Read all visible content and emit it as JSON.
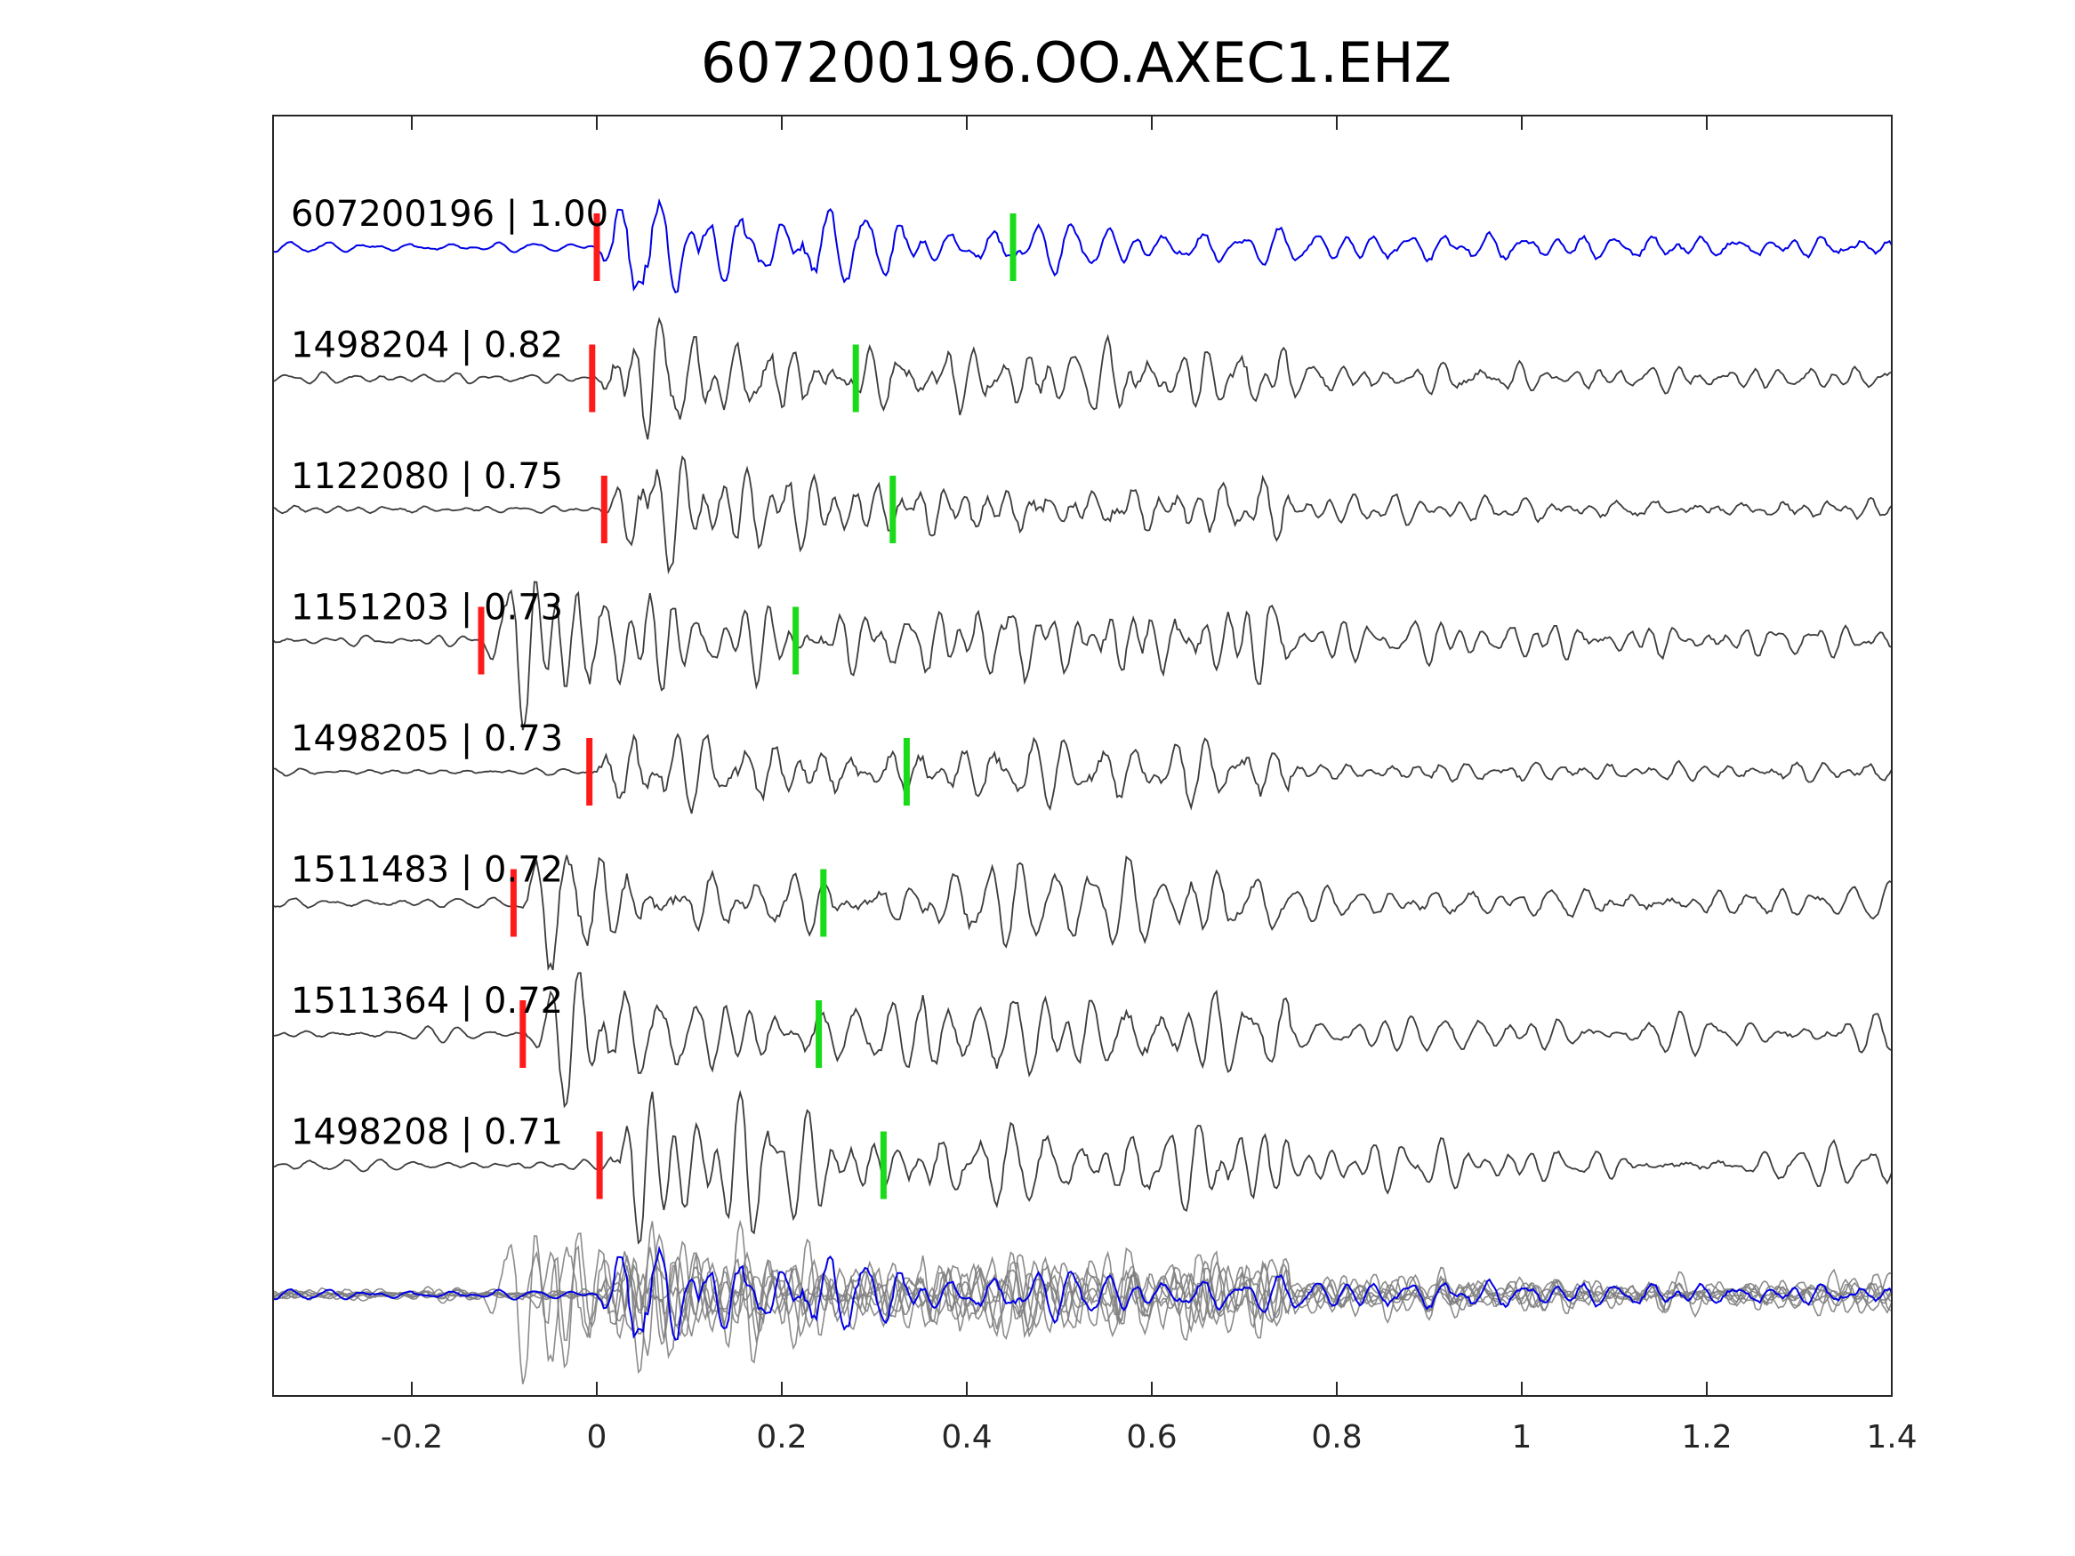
{
  "chart_data": {
    "type": "line",
    "title": "607200196.OO.AXEC1.EHZ",
    "xlabel": "",
    "ylabel": "",
    "xlim": [
      -0.35,
      1.4
    ],
    "xticks": [
      -0.2,
      0,
      0.2,
      0.4,
      0.6,
      0.8,
      1.0,
      1.2,
      1.4
    ],
    "xtick_labels": [
      "-0.2",
      "0",
      "0.2",
      "0.4",
      "0.6",
      "0.8",
      "1",
      "1.2",
      "1.4"
    ],
    "grid": false,
    "legend": "none",
    "colors": {
      "reference": "#0000e6",
      "trace": "#3c3c3c",
      "overlay": "#808080",
      "p_pick": "#ff1a1a",
      "s_pick": "#1adb1a",
      "axes": "#262626"
    },
    "series": [
      {
        "name": "607200196",
        "label": "607200196 | 1.00",
        "cc": 1.0,
        "reference": true,
        "p_pick": 0.0,
        "s_pick": 0.45,
        "onset": 0.0,
        "seed": 11
      },
      {
        "name": "1498204",
        "label": "1498204 | 0.82",
        "cc": 0.82,
        "reference": false,
        "p_pick": -0.005,
        "s_pick": 0.28,
        "onset": -0.005,
        "seed": 23
      },
      {
        "name": "1122080",
        "label": "1122080 | 0.75",
        "cc": 0.75,
        "reference": false,
        "p_pick": 0.008,
        "s_pick": 0.32,
        "onset": 0.008,
        "seed": 37
      },
      {
        "name": "1151203",
        "label": "1151203 | 0.73",
        "cc": 0.73,
        "reference": false,
        "p_pick": -0.125,
        "s_pick": 0.215,
        "onset": -0.125,
        "seed": 41
      },
      {
        "name": "1498205",
        "label": "1498205 | 0.73",
        "cc": 0.73,
        "reference": false,
        "p_pick": -0.008,
        "s_pick": 0.335,
        "onset": -0.008,
        "seed": 53
      },
      {
        "name": "1511483",
        "label": "1511483 | 0.72",
        "cc": 0.72,
        "reference": false,
        "p_pick": -0.09,
        "s_pick": 0.245,
        "onset": -0.09,
        "seed": 67
      },
      {
        "name": "1511364",
        "label": "1511364 | 0.72",
        "cc": 0.72,
        "reference": false,
        "p_pick": -0.08,
        "s_pick": 0.24,
        "onset": -0.08,
        "seed": 79
      },
      {
        "name": "1498208",
        "label": "1498208 | 0.71",
        "cc": 0.71,
        "reference": false,
        "p_pick": 0.003,
        "s_pick": 0.31,
        "onset": 0.003,
        "seed": 83
      }
    ],
    "stack": {
      "note_free": true
    }
  }
}
